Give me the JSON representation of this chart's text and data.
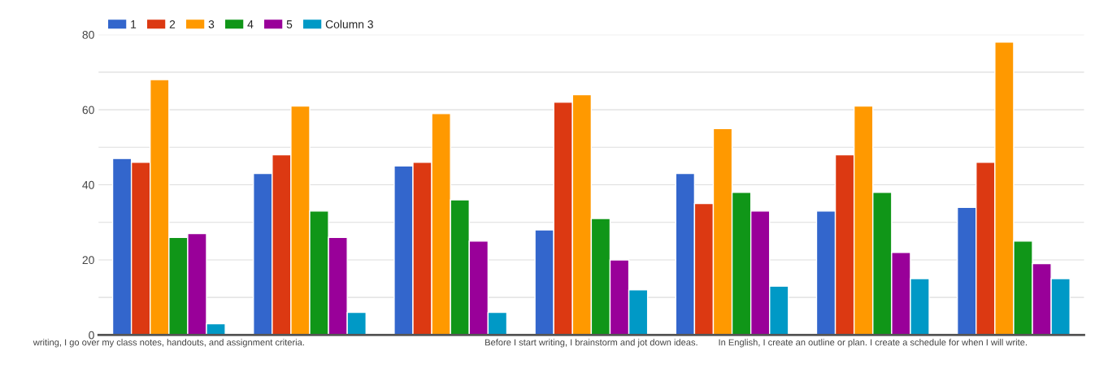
{
  "chart_data": {
    "type": "bar",
    "categories": [
      "writing, I go over my class notes, handouts, and assignment criteria.",
      null,
      null,
      "Before I start writing, I brainstorm and jot down ideas.",
      null,
      "In English, I create an outline or plan. I create a schedule for when I will write.",
      null
    ],
    "series": [
      {
        "name": "1",
        "color": "#3366cc",
        "values": [
          47,
          43,
          45,
          28,
          43,
          33,
          34
        ]
      },
      {
        "name": "2",
        "color": "#dc3912",
        "values": [
          46,
          48,
          46,
          62,
          35,
          48,
          46
        ]
      },
      {
        "name": "3",
        "color": "#ff9900",
        "values": [
          68,
          61,
          59,
          64,
          55,
          61,
          78
        ]
      },
      {
        "name": "4",
        "color": "#109618",
        "values": [
          26,
          33,
          36,
          31,
          38,
          38,
          25
        ]
      },
      {
        "name": "5",
        "color": "#990099",
        "values": [
          27,
          26,
          25,
          20,
          33,
          22,
          19
        ]
      },
      {
        "name": "Column 3",
        "color": "#0099c6",
        "values": [
          3,
          6,
          6,
          12,
          13,
          15,
          15
        ]
      }
    ],
    "ylim": [
      0,
      80
    ],
    "yticks": [
      0,
      {
        "value": 10,
        "label": null
      },
      20,
      {
        "value": 30,
        "label": null
      },
      40,
      {
        "value": 50,
        "label": null
      },
      60,
      {
        "value": 70,
        "label": null
      },
      80
    ],
    "grid": "y",
    "legend": "top left"
  }
}
